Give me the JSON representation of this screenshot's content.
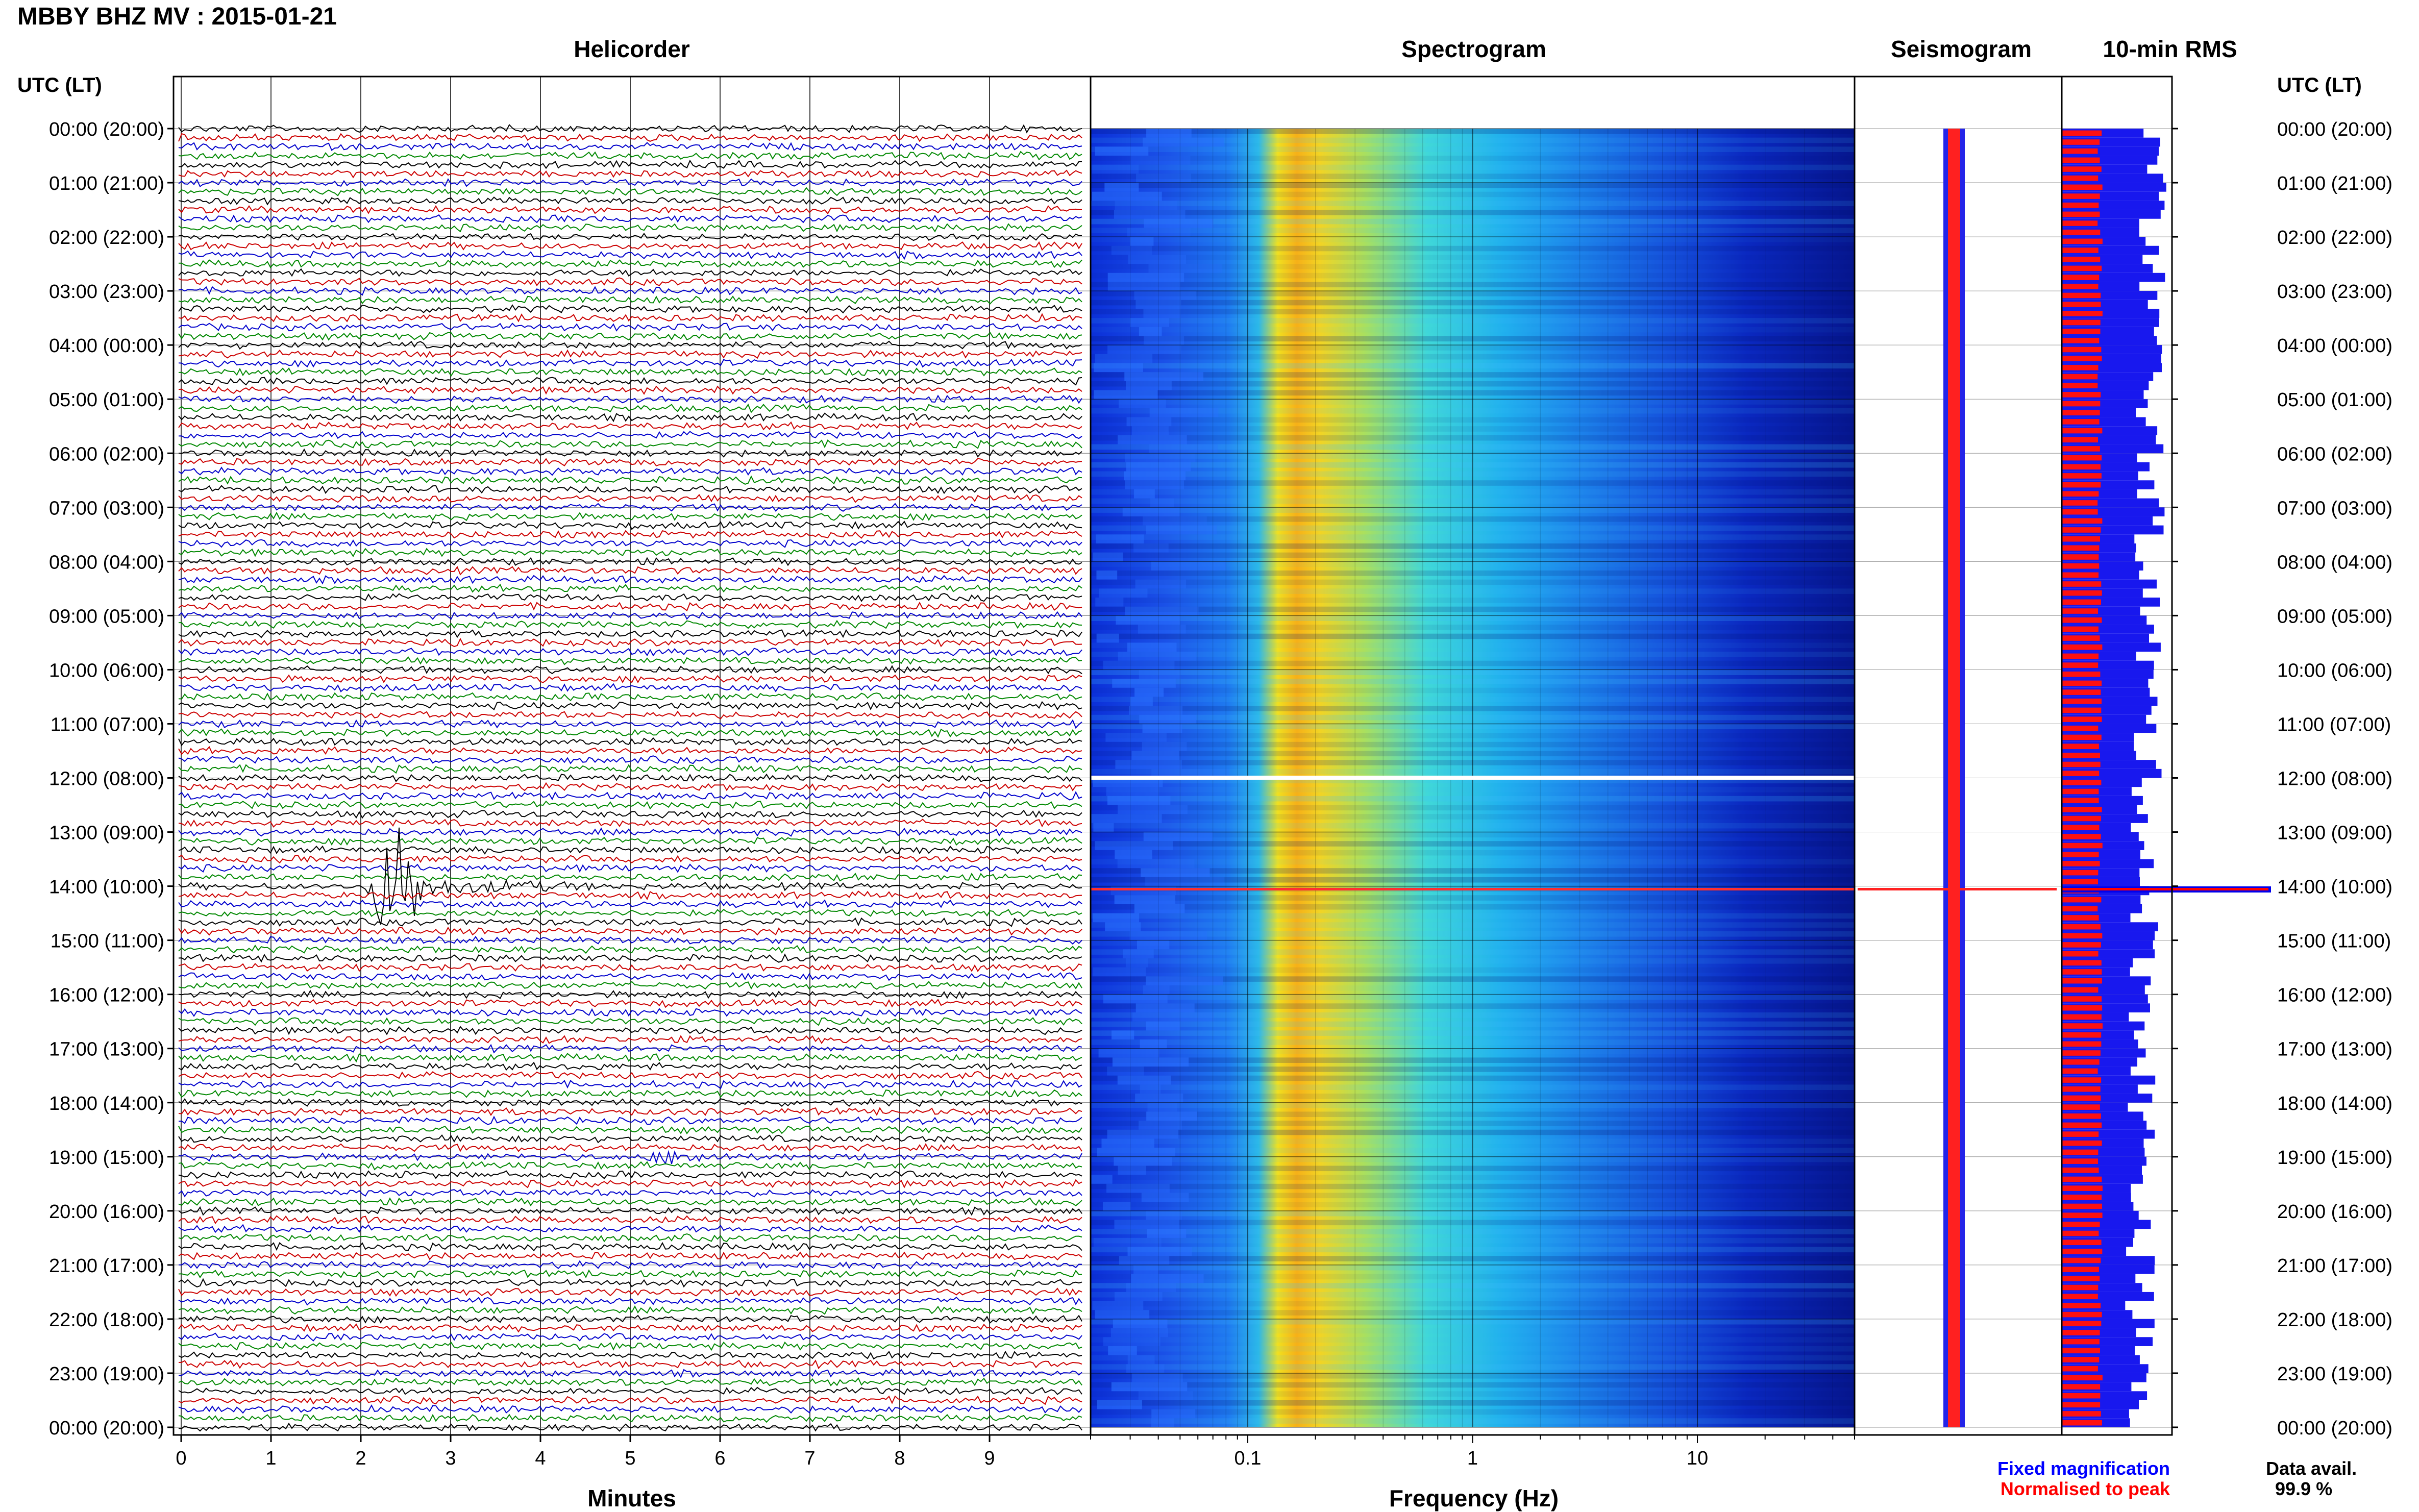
{
  "title": "MBBY BHZ MV : 2015-01-21",
  "panels": {
    "helicorder": "Helicorder",
    "spectrogram": "Spectrogram",
    "seismogram": "Seismogram",
    "rms": "10-min RMS"
  },
  "time_axis_label": "UTC (LT)",
  "time_labels": [
    "00:00 (20:00)",
    "01:00 (21:00)",
    "02:00 (22:00)",
    "03:00 (23:00)",
    "04:00 (00:00)",
    "05:00 (01:00)",
    "06:00 (02:00)",
    "07:00 (03:00)",
    "08:00 (04:00)",
    "09:00 (05:00)",
    "10:00 (06:00)",
    "11:00 (07:00)",
    "12:00 (08:00)",
    "13:00 (09:00)",
    "14:00 (10:00)",
    "15:00 (11:00)",
    "16:00 (12:00)",
    "17:00 (13:00)",
    "18:00 (14:00)",
    "19:00 (15:00)",
    "20:00 (16:00)",
    "21:00 (17:00)",
    "22:00 (18:00)",
    "23:00 (19:00)",
    "00:00 (20:00)"
  ],
  "x_axes": {
    "minutes": {
      "label": "Minutes",
      "ticks": [
        "0",
        "1",
        "2",
        "3",
        "4",
        "5",
        "6",
        "7",
        "8",
        "9"
      ]
    },
    "frequency": {
      "label": "Frequency (Hz)",
      "ticks": [
        "0.1",
        "1",
        "10"
      ]
    }
  },
  "legend": {
    "fixed": "Fixed magnification",
    "normalised": "Normalised to peak",
    "fixed_color": "#0000ff",
    "normalised_color": "#ff0000"
  },
  "data_availability": {
    "label": "Data avail.",
    "value": "99.9 %"
  },
  "trace_colors": [
    "#000000",
    "#cc0000",
    "#0000cc",
    "#008800"
  ],
  "chart_data": [
    {
      "type": "line",
      "panel": "Helicorder",
      "xlabel": "Minutes",
      "xlim": [
        0,
        10
      ],
      "rows_per_hour": 6,
      "hours": 24,
      "events": [
        {
          "time_utc": "14:00",
          "minute": 2.4,
          "relative_amplitude": 10,
          "note": "large event"
        },
        {
          "time_utc": "19:00",
          "minute": 5.6,
          "relative_amplitude": 2
        }
      ]
    },
    {
      "type": "heatmap",
      "panel": "Spectrogram",
      "xlabel": "Frequency (Hz)",
      "x_scale": "log",
      "xlim": [
        0.02,
        50
      ],
      "peak_frequency_hz": 0.2,
      "gap_time_utc": "12:00",
      "event_time_utc": "14:00"
    },
    {
      "type": "line",
      "panel": "Seismogram",
      "event_time_utc": "14:00"
    },
    {
      "type": "bar",
      "panel": "10-min RMS",
      "orientation": "horizontal",
      "intervals": 144,
      "peak_time_utc": "14:00"
    }
  ]
}
